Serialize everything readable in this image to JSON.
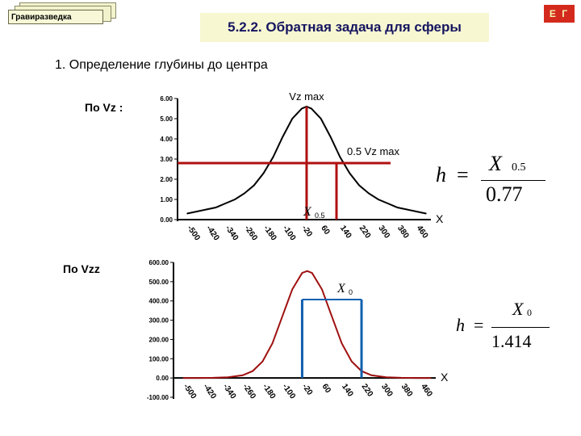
{
  "badge": "Гравиразведка",
  "title": "5.2.2. Обратная задача для сферы",
  "corner": "Е Г",
  "heading": "1. Определение  глубины до центра",
  "label_vz": "По Vz :",
  "label_vzz": "По Vzz",
  "colors": {
    "curve_top": "#000000",
    "curve_bottom": "#a01010",
    "marker_red": "#b01010",
    "marker_blue": "#1060b0"
  },
  "formula1": {
    "lhs": "h",
    "eq": "=",
    "num": "X",
    "num_sub": "0.5",
    "den": "0.77"
  },
  "formula2": {
    "lhs": "h",
    "eq": "=",
    "num": "X",
    "num_sub": "0",
    "den": "1.414"
  },
  "chart_data": [
    {
      "type": "line",
      "title": "",
      "xlabel": "X",
      "ylabel": "",
      "ylim": [
        0,
        6
      ],
      "y_ticks": [
        "0.00",
        "1.00",
        "2.00",
        "3.00",
        "4.00",
        "5.00",
        "6.00"
      ],
      "x_ticks": [
        "-500",
        "-420",
        "-340",
        "-260",
        "-180",
        "-100",
        "-20",
        "60",
        "140",
        "220",
        "300",
        "380",
        "460"
      ],
      "annotations": {
        "max": "Vz max",
        "half": "0.5 Vz max",
        "x_label": "X",
        "x_sub": "0.5"
      },
      "x": [
        -500,
        -460,
        -420,
        -380,
        -340,
        -300,
        -260,
        -220,
        -180,
        -140,
        -100,
        -60,
        -20,
        0,
        20,
        60,
        100,
        140,
        180,
        220,
        260,
        300,
        340,
        380,
        420,
        460,
        500
      ],
      "values": [
        0.3,
        0.4,
        0.5,
        0.6,
        0.8,
        1.0,
        1.3,
        1.7,
        2.3,
        3.1,
        4.1,
        5.0,
        5.5,
        5.6,
        5.5,
        5.0,
        4.1,
        3.1,
        2.3,
        1.7,
        1.3,
        1.0,
        0.8,
        0.6,
        0.5,
        0.4,
        0.3
      ]
    },
    {
      "type": "line",
      "title": "",
      "xlabel": "X",
      "ylabel": "",
      "ylim": [
        -100,
        600
      ],
      "y_ticks": [
        "-100.00",
        "0.00",
        "100.00",
        "200.00",
        "300.00",
        "400.00",
        "500.00",
        "600.00"
      ],
      "x_ticks": [
        "-500",
        "-420",
        "-340",
        "-260",
        "-180",
        "-100",
        "-20",
        "60",
        "140",
        "220",
        "300",
        "380",
        "460"
      ],
      "annotations": {
        "x_label": "X",
        "x_sub": "0"
      },
      "x": [
        -500,
        -440,
        -380,
        -320,
        -260,
        -220,
        -180,
        -140,
        -100,
        -60,
        -20,
        0,
        20,
        60,
        100,
        140,
        180,
        220,
        260,
        320,
        380,
        440,
        500
      ],
      "values": [
        0,
        0,
        1,
        4,
        14,
        36,
        86,
        180,
        320,
        460,
        545,
        555,
        545,
        460,
        320,
        180,
        86,
        36,
        14,
        4,
        1,
        0,
        0
      ]
    }
  ]
}
